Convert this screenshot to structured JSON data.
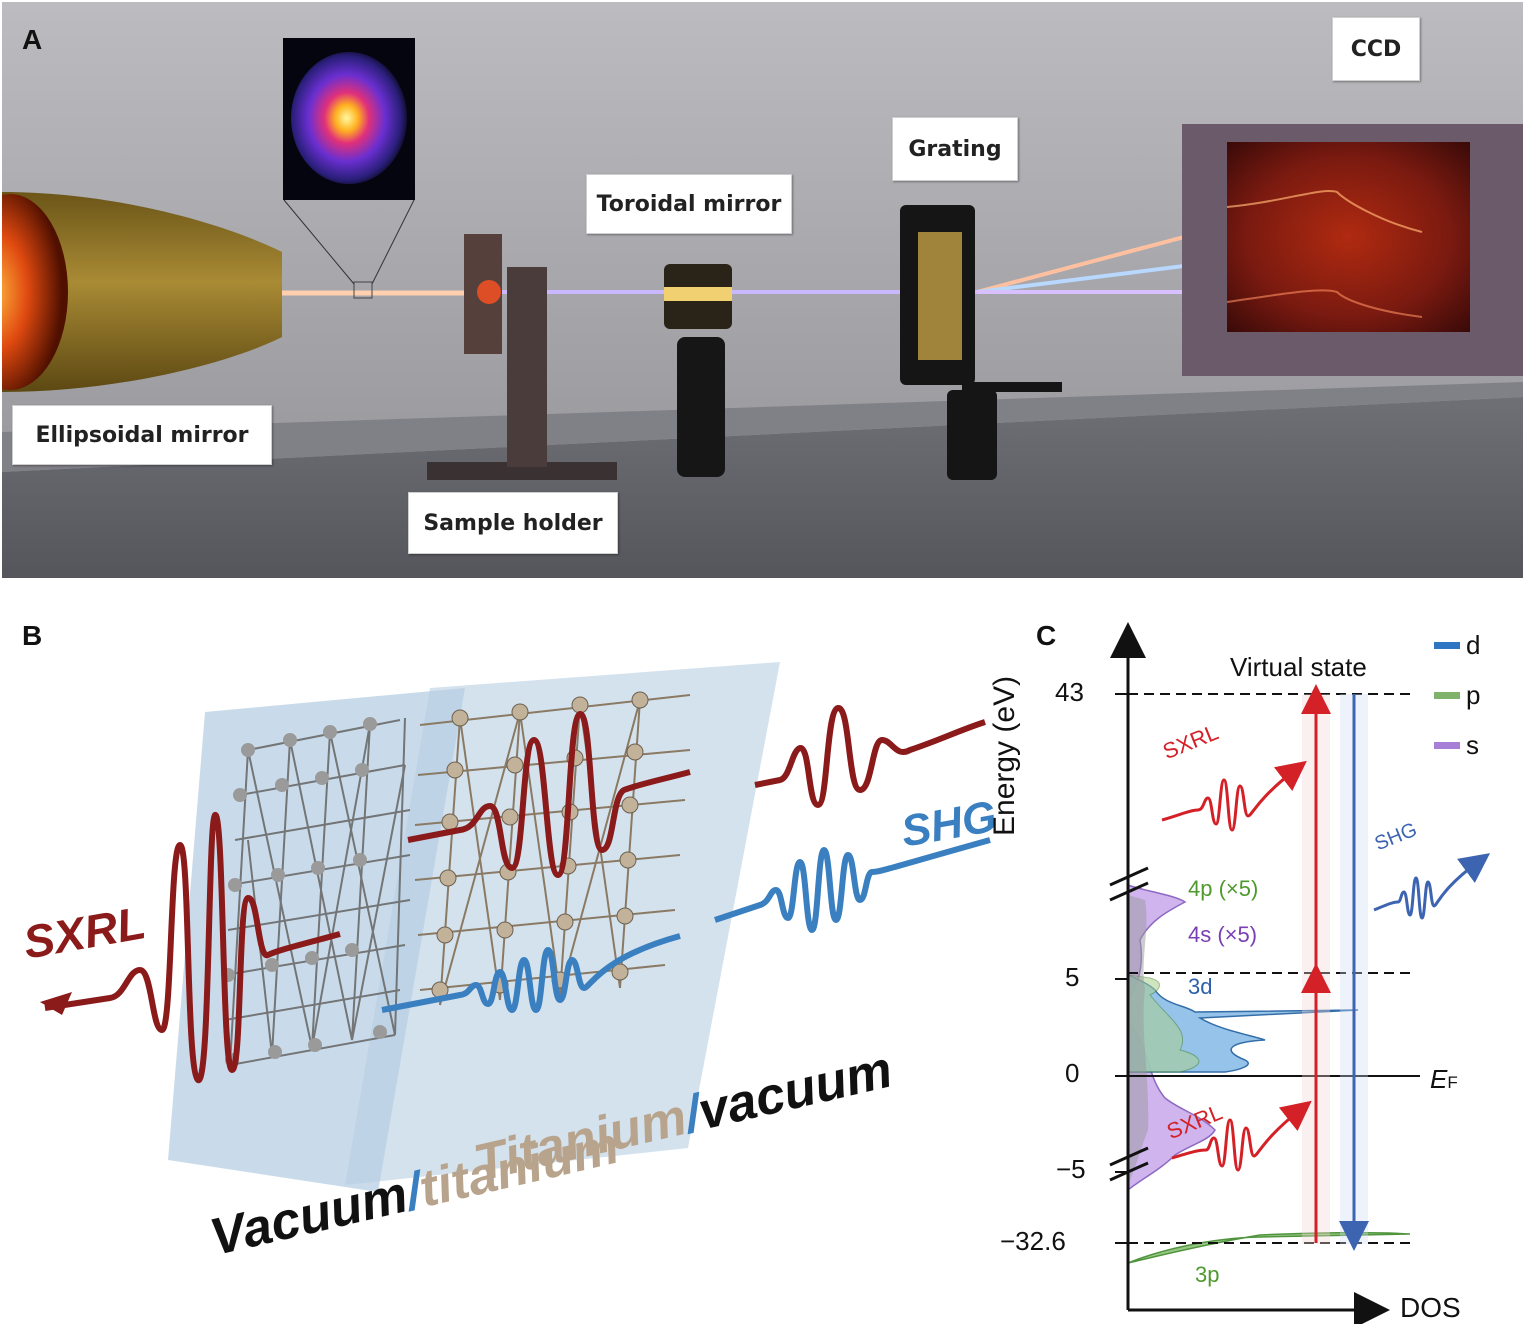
{
  "panel_a": {
    "letter": "A",
    "labels": {
      "ccd": "CCD",
      "grating": "Grating",
      "toroidal_mirror": "Toroidal mirror",
      "ellipsoidal_mirror": "Ellipsoidal mirror",
      "sample_holder": "Sample holder"
    }
  },
  "panel_b": {
    "letter": "B",
    "sxrl": "SXRL",
    "shg": "SHG",
    "interface_1": {
      "part1": "Vacuum",
      "sep": "/",
      "part2": "titanium"
    },
    "interface_2": {
      "part1": "Titanium",
      "sep": "/",
      "part2": "vacuum"
    },
    "colors": {
      "sxrl": "#8b1a1a",
      "shg": "#3a7fc0",
      "titanium": "#b8a48c"
    }
  },
  "panel_c": {
    "letter": "C",
    "y_axis_label": "Energy (eV)",
    "x_axis_label": "DOS",
    "ticks": [
      "43",
      "5",
      "0",
      "−5",
      "−32.6"
    ],
    "virtual_state": "Virtual state",
    "fermi_label": "E",
    "fermi_sub": "F",
    "legend": [
      {
        "label": "d",
        "color": "#2e75c4"
      },
      {
        "label": "p",
        "color": "#7fb36b"
      },
      {
        "label": "s",
        "color": "#a77fd6"
      }
    ],
    "orbital_labels": {
      "p4": "4p (×5)",
      "s4": "4s (×5)",
      "d3": "3d",
      "p3": "3p"
    },
    "sxrl_top": "SXRL",
    "sxrl_bottom": "SXRL",
    "shg": "SHG",
    "colors": {
      "sxrl": "#d42027",
      "shg": "#3d64b0",
      "d": "#2e75c4",
      "p": "#7fb36b",
      "s": "#a77fd6",
      "p3_label": "#4e9a2e",
      "s4_label": "#7a3fb5",
      "d3_label": "#2e5fa8"
    }
  }
}
